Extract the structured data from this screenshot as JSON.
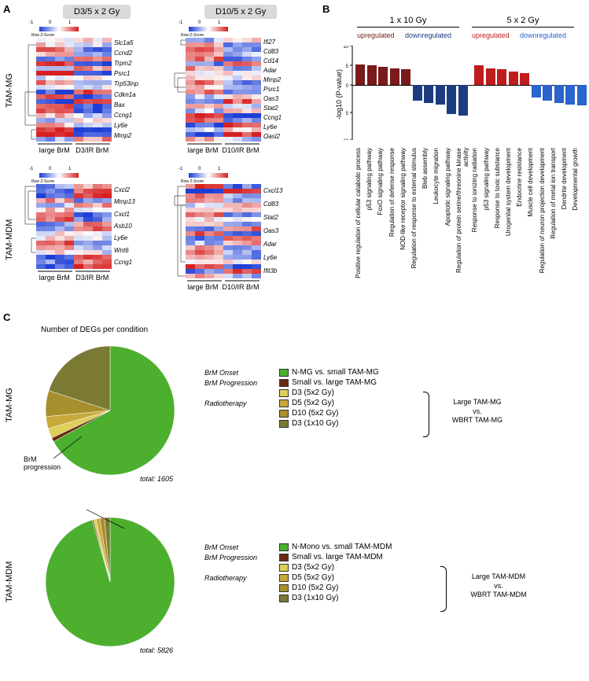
{
  "panels": {
    "A": "A",
    "B": "B",
    "C": "C"
  },
  "panelA": {
    "dose_headers": [
      "D3/5 x 2 Gy",
      "D10/5 x 2 Gy"
    ],
    "row_labels": [
      "TAM-MG",
      "TAM-MDM"
    ],
    "colorbar": {
      "low": "#1e3fd6",
      "mid": "#ffffff",
      "high": "#d62020",
      "text": "Row Z-Score",
      "ticks": [
        "-1",
        "0",
        "1"
      ]
    },
    "heatmaps": {
      "MG_D3": {
        "rows": 22,
        "cols": 8,
        "split": 4,
        "genes_right": [
          "Slc1a5",
          "Ccnd2",
          "Trpm2",
          "Psrc1",
          "Trp53inp",
          "Cdkn1a",
          "Bax",
          "Ccng1",
          "Ly6e",
          "Mmp2"
        ],
        "axis": [
          "large BrM",
          "D3/IR BrM"
        ]
      },
      "MG_D10": {
        "rows": 22,
        "cols": 8,
        "split": 4,
        "genes_right": [
          "Ifi27",
          "Cd83",
          "Cd14",
          "Adar",
          "Mmp2",
          "Psrc1",
          "Oas3",
          "Stat2",
          "Ccng1",
          "Ly6e",
          "Oasl2"
        ],
        "axis": [
          "large BrM",
          "D10/IR BrM"
        ]
      },
      "MDM_D3": {
        "rows": 18,
        "cols": 8,
        "split": 4,
        "genes_right": [
          "Cxcl2",
          "Mmp13",
          "Cxcl1",
          "Asb10",
          "Ly6e",
          "Wnt6",
          "Ccng1"
        ],
        "axis": [
          "large BrM",
          "D3/IR BrM"
        ]
      },
      "MDM_D10": {
        "rows": 20,
        "cols": 8,
        "split": 4,
        "genes_right": [
          "Cxcl13",
          "Cd83",
          "Stat2",
          "Oas3",
          "Adar",
          "Ly6e",
          "Ifit3b"
        ],
        "axis": [
          "large BrM",
          "D10/IR BrM"
        ]
      }
    }
  },
  "panelB": {
    "group_headers": [
      "1 x 10 Gy",
      "5 x 2 Gy"
    ],
    "sub_headers": {
      "up1": "upregulated",
      "down1": "downregulated",
      "up2": "upregulated",
      "down2": "downregulated",
      "up1_color": "#7a1a1a",
      "down1_color": "#1c3c82",
      "up2_color": "#bf1d1d",
      "down2_color": "#2a64cc"
    },
    "ylabel": "-log10 (P-value)",
    "ylim": 10,
    "bars": [
      {
        "h": 5.3,
        "dir": "up",
        "c": "#7a1a1a",
        "lab": "Positive regulation of cellular catabolic process"
      },
      {
        "h": 5.0,
        "dir": "up",
        "c": "#7a1a1a",
        "lab": "p53 signaling pathway"
      },
      {
        "h": 4.6,
        "dir": "up",
        "c": "#7a1a1a",
        "lab": "FoxO signaling pathway"
      },
      {
        "h": 4.3,
        "dir": "up",
        "c": "#7a1a1a",
        "lab": "Regulation of defense response"
      },
      {
        "h": 4.0,
        "dir": "up",
        "c": "#7a1a1a",
        "lab": "NOD-like receptor signaling pathway"
      },
      {
        "h": 4.0,
        "dir": "down",
        "c": "#1c3c82",
        "lab": "Regulation of response to external stimulus"
      },
      {
        "h": 4.5,
        "dir": "down",
        "c": "#1c3c82",
        "lab": "Bleb assembly"
      },
      {
        "h": 5.0,
        "dir": "down",
        "c": "#1c3c82",
        "lab": "Leukocyte migration"
      },
      {
        "h": 7.3,
        "dir": "down",
        "c": "#1c3c82",
        "lab": "Apoptotic signaling pathway"
      },
      {
        "h": 7.8,
        "dir": "down",
        "c": "#1c3c82",
        "lab": "Regulation of protein serine/threonine kinase activity"
      },
      {
        "h": 5.0,
        "dir": "up",
        "c": "#bf1d1d",
        "lab": "Response to ionizing radiation"
      },
      {
        "h": 4.2,
        "dir": "up",
        "c": "#bf1d1d",
        "lab": "p53 signaling pathway"
      },
      {
        "h": 4.0,
        "dir": "up",
        "c": "#bf1d1d",
        "lab": "Response to toxic substance"
      },
      {
        "h": 3.4,
        "dir": "up",
        "c": "#bf1d1d",
        "lab": "Urogenital system development"
      },
      {
        "h": 3.0,
        "dir": "up",
        "c": "#bf1d1d",
        "lab": "Endocrine resistance"
      },
      {
        "h": 3.2,
        "dir": "down",
        "c": "#2a64cc",
        "lab": "Muscle cell development"
      },
      {
        "h": 4.0,
        "dir": "down",
        "c": "#2a64cc",
        "lab": "Regulation of neuron projection development"
      },
      {
        "h": 4.6,
        "dir": "down",
        "c": "#2a64cc",
        "lab": "Regulation of metal ion transport"
      },
      {
        "h": 5.0,
        "dir": "down",
        "c": "#2a64cc",
        "lab": "Dendrite development"
      },
      {
        "h": 5.2,
        "dir": "down",
        "c": "#2a64cc",
        "lab": "Developmental growth"
      }
    ]
  },
  "panelC": {
    "title": "Number of DEGs per condition",
    "row_labels": [
      "TAM-MG",
      "TAM-MDM"
    ],
    "pies": {
      "MG": {
        "total": "total: 1605",
        "leader_label": "BrM\nprogression",
        "slices": [
          {
            "frac": 0.67,
            "color": "#4caf2e"
          },
          {
            "frac": 0.01,
            "color": "#6a2a12"
          },
          {
            "frac": 0.025,
            "color": "#dccf5a"
          },
          {
            "frac": 0.03,
            "color": "#c7a83c"
          },
          {
            "frac": 0.065,
            "color": "#a88f2d"
          },
          {
            "frac": 0.2,
            "color": "#7a7a34"
          }
        ]
      },
      "MDM": {
        "total": "total: 5826",
        "slices": [
          {
            "frac": 0.955,
            "color": "#4caf2e"
          },
          {
            "frac": 0.003,
            "color": "#6a2a12"
          },
          {
            "frac": 0.007,
            "color": "#dccf5a"
          },
          {
            "frac": 0.009,
            "color": "#c7a83c"
          },
          {
            "frac": 0.012,
            "color": "#a88f2d"
          },
          {
            "frac": 0.014,
            "color": "#7a7a34"
          }
        ]
      }
    },
    "legend_stages": [
      "BrM Onset",
      "BrM Progression",
      "Radiotherapy"
    ],
    "legendMG": [
      {
        "c": "#4caf2e",
        "t": "N-MG vs. small TAM-MG"
      },
      {
        "c": "#6a2a12",
        "t": "Small vs. large TAM-MG"
      },
      {
        "c": "#dccf5a",
        "t": "D3 (5x2 Gy)"
      },
      {
        "c": "#c7a83c",
        "t": "D5 (5x2 Gy)"
      },
      {
        "c": "#a88f2d",
        "t": "D10 (5x2 Gy)"
      },
      {
        "c": "#7a7a34",
        "t": "D3 (1x10 Gy)"
      }
    ],
    "legendMDM": [
      {
        "c": "#4caf2e",
        "t": "N-Mono vs. small TAM-MDM"
      },
      {
        "c": "#6a2a12",
        "t": "Small vs. large TAM-MDM"
      },
      {
        "c": "#dccf5a",
        "t": "D3 (5x2 Gy)"
      },
      {
        "c": "#c7a83c",
        "t": "D5 (5x2 Gy)"
      },
      {
        "c": "#a88f2d",
        "t": "D10 (5x2 Gy)"
      },
      {
        "c": "#7a7a34",
        "t": "D3 (1x10 Gy)"
      }
    ],
    "brace_labels": {
      "MG": "Large TAM-MG\nvs.\nWBRT TAM-MG",
      "MDM": "Large TAM-MDM\nvs.\nWBRT TAM-MDM"
    }
  }
}
